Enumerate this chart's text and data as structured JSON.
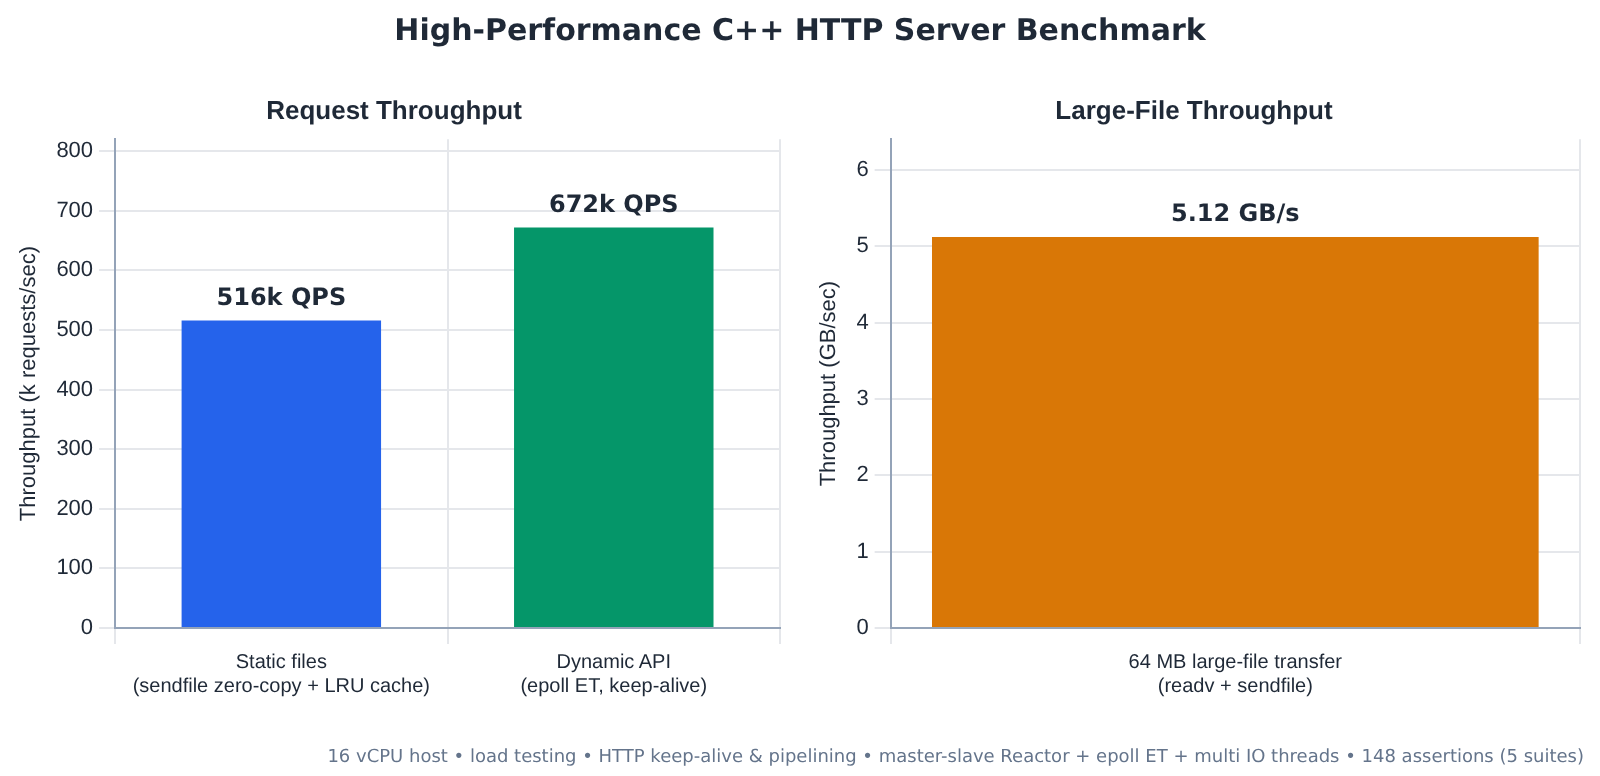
{
  "chart_data": [
    {
      "type": "other",
      "title": "High-Performance C++ HTTP Server Benchmark",
      "annotations": [
        "16 vCPU host  •  load testing  •  HTTP keep-alive & pipelining  •  master-slave Reactor + epoll ET + multi IO threads  •  148 assertions (5 suites)"
      ]
    },
    {
      "type": "bar",
      "title": "Request Throughput",
      "ylabel": "Throughput (k requests/sec)",
      "categories": [
        "Static files\n(sendfile zero-copy + LRU cache)",
        "Dynamic API\n(epoll ET, keep-alive)"
      ],
      "values": [
        516,
        672
      ],
      "colors": [
        "#2563eb",
        "#059669"
      ],
      "value_labels": [
        "516k QPS",
        "672k QPS"
      ],
      "ylim": [
        0,
        820
      ],
      "yticks": [
        0,
        100,
        200,
        300,
        400,
        500,
        600,
        700,
        800
      ],
      "grid": true,
      "legend": false
    },
    {
      "type": "bar",
      "title": "Large-File Throughput",
      "ylabel": "Throughput (GB/sec)",
      "categories": [
        "64 MB large-file transfer\n(readv + sendfile)"
      ],
      "values": [
        5.12
      ],
      "colors": [
        "#d97706"
      ],
      "value_labels": [
        "5.12 GB/s"
      ],
      "ylim": [
        0,
        6.4
      ],
      "yticks": [
        0,
        1,
        2,
        3,
        4,
        5,
        6
      ],
      "grid": true,
      "legend": false
    }
  ]
}
